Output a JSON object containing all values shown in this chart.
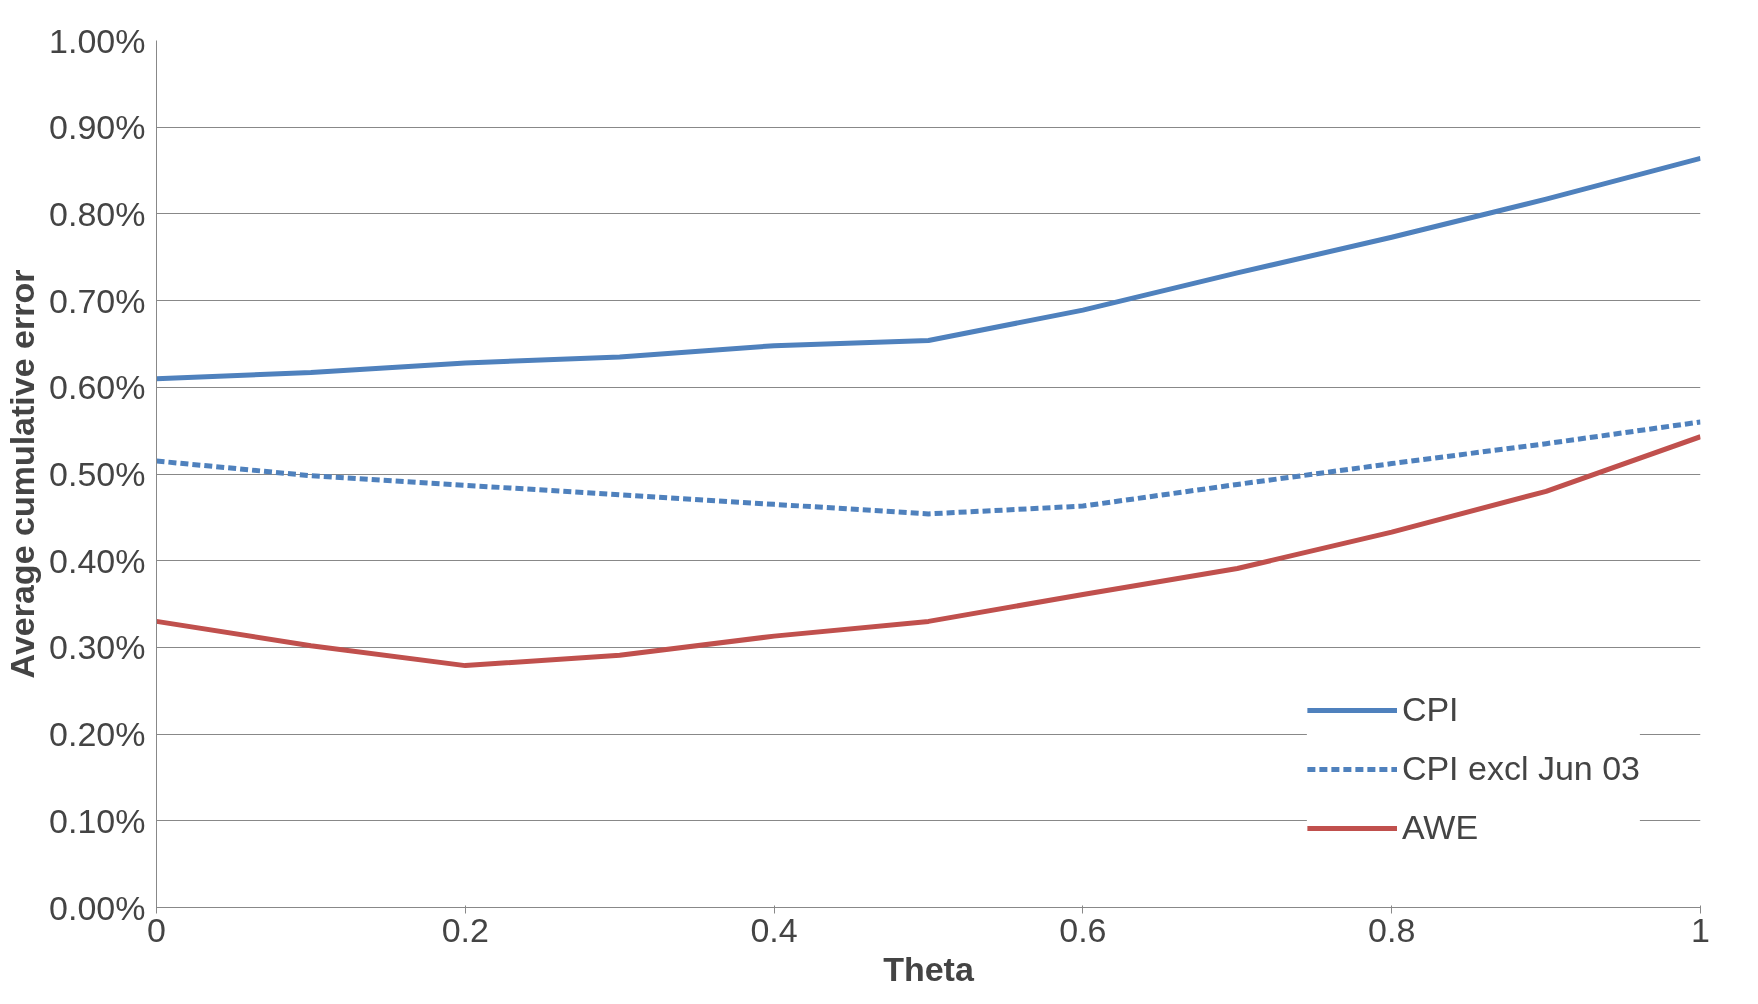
{
  "chart_data": {
    "type": "line",
    "xlabel": "Theta",
    "ylabel": "Average cumulative error",
    "x": [
      0,
      0.1,
      0.2,
      0.3,
      0.4,
      0.5,
      0.6,
      0.7,
      0.8,
      0.9,
      1
    ],
    "series": [
      {
        "name": "CPI",
        "color": "#4f81bd",
        "line_style": "solid",
        "values": [
          0.61,
          0.617,
          0.628,
          0.635,
          0.648,
          0.654,
          0.689,
          0.732,
          0.773,
          0.817,
          0.864
        ]
      },
      {
        "name": "CPI excl Jun 03",
        "color": "#4f81bd",
        "line_style": "dashed",
        "values": [
          0.515,
          0.498,
          0.487,
          0.476,
          0.465,
          0.454,
          0.463,
          0.488,
          0.512,
          0.535,
          0.56
        ]
      },
      {
        "name": "AWE",
        "color": "#c0504d",
        "line_style": "solid",
        "values": [
          0.33,
          0.302,
          0.279,
          0.291,
          0.313,
          0.33,
          0.361,
          0.391,
          0.433,
          0.48,
          0.543
        ]
      }
    ],
    "xlim": [
      0,
      1
    ],
    "xticks": [
      0,
      0.2,
      0.4,
      0.6,
      0.8,
      1
    ],
    "ylim": [
      0,
      1
    ],
    "yticks": [
      {
        "value": 0,
        "label": "0.00%"
      },
      {
        "value": 0.1,
        "label": "0.10%"
      },
      {
        "value": 0.2,
        "label": "0.20%"
      },
      {
        "value": 0.3,
        "label": "0.30%"
      },
      {
        "value": 0.4,
        "label": "0.40%"
      },
      {
        "value": 0.5,
        "label": "0.50%"
      },
      {
        "value": 0.6,
        "label": "0.60%"
      },
      {
        "value": 0.7,
        "label": "0.70%"
      },
      {
        "value": 0.8,
        "label": "0.80%"
      },
      {
        "value": 0.9,
        "label": "0.90%"
      },
      {
        "value": 1,
        "label": "1.00%"
      }
    ],
    "grid": "y",
    "legend": "bottom right",
    "marker": "none"
  }
}
